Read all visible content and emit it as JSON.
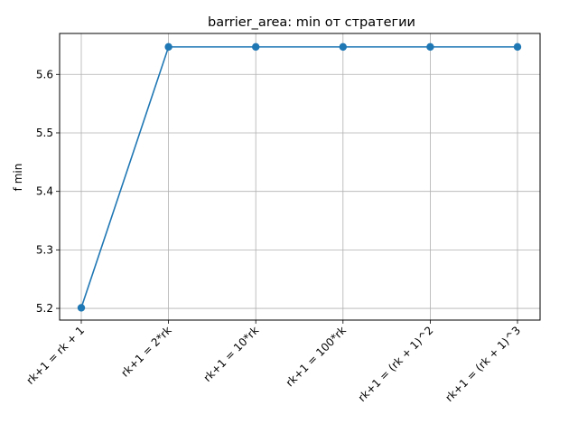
{
  "chart_data": {
    "type": "line",
    "title": "barrier_area: min от стратегии",
    "xlabel": "",
    "ylabel": "f min",
    "categories": [
      "rk+1 = rk + 1",
      "rk+1 = 2*rk",
      "rk+1 = 10*rk",
      "rk+1 = 100*rk",
      "rk+1 = (rk + 1)^2",
      "rk+1 = (rk + 1)^3"
    ],
    "series": [
      {
        "values": [
          5.201,
          5.647,
          5.647,
          5.647,
          5.647,
          5.647
        ]
      }
    ],
    "ylim": [
      5.18,
      5.67
    ],
    "yticks": [
      "5.2",
      "5.3",
      "5.4",
      "5.5",
      "5.6"
    ],
    "grid": true,
    "line_color": "#1f77b4"
  }
}
